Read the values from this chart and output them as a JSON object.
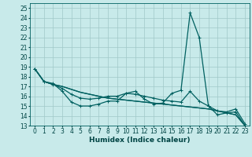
{
  "xlabel": "Humidex (Indice chaleur)",
  "xlim": [
    -0.5,
    23.5
  ],
  "ylim": [
    13,
    25.5
  ],
  "yticks": [
    13,
    14,
    15,
    16,
    17,
    18,
    19,
    20,
    21,
    22,
    23,
    24,
    25
  ],
  "xticks": [
    0,
    1,
    2,
    3,
    4,
    5,
    6,
    7,
    8,
    9,
    10,
    11,
    12,
    13,
    14,
    15,
    16,
    17,
    18,
    19,
    20,
    21,
    22,
    23
  ],
  "bg_color": "#c8eaea",
  "grid_color": "#a0c8c8",
  "line_color": "#006060",
  "lines": [
    {
      "y": [
        18.8,
        17.5,
        17.3,
        16.5,
        15.4,
        15.0,
        15.0,
        15.2,
        15.5,
        15.5,
        16.3,
        16.5,
        15.7,
        15.2,
        15.3,
        16.3,
        16.6,
        24.5,
        22.0,
        15.0,
        14.1,
        14.3,
        14.4,
        13.0
      ],
      "marker": true
    },
    {
      "y": [
        18.8,
        17.5,
        17.2,
        16.8,
        16.2,
        15.8,
        15.7,
        15.8,
        16.0,
        16.0,
        16.3,
        16.2,
        16.0,
        15.8,
        15.6,
        15.5,
        15.4,
        16.5,
        15.5,
        15.0,
        14.5,
        14.4,
        14.7,
        13.2
      ],
      "marker": true
    },
    {
      "y": [
        18.8,
        17.5,
        17.2,
        17.0,
        16.7,
        16.4,
        16.2,
        16.0,
        15.8,
        15.7,
        15.6,
        15.5,
        15.4,
        15.3,
        15.2,
        15.1,
        15.0,
        14.9,
        14.8,
        14.7,
        14.5,
        14.3,
        14.1,
        13.0
      ],
      "marker": false
    },
    {
      "y": [
        18.8,
        17.5,
        17.2,
        17.0,
        16.7,
        16.4,
        16.2,
        16.0,
        15.8,
        15.7,
        15.6,
        15.5,
        15.4,
        15.3,
        15.2,
        15.1,
        15.0,
        14.9,
        14.8,
        14.7,
        14.5,
        14.3,
        14.1,
        13.0
      ],
      "marker": false
    }
  ],
  "marker_symbol": "+",
  "markersize": 3.5,
  "linewidth": 0.9,
  "font_color": "#004444",
  "tick_fontsize": 5.5,
  "label_fontsize": 6.5
}
